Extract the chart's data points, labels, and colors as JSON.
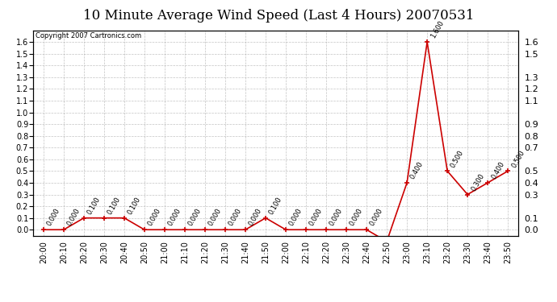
{
  "title": "10 Minute Average Wind Speed (Last 4 Hours) 20070531",
  "copyright": "Copyright 2007 Cartronics.com",
  "x_labels": [
    "20:00",
    "20:10",
    "20:20",
    "20:30",
    "20:40",
    "20:50",
    "21:00",
    "21:10",
    "21:20",
    "21:30",
    "21:40",
    "21:50",
    "22:00",
    "22:10",
    "22:20",
    "22:30",
    "22:40",
    "22:50",
    "23:00",
    "23:10",
    "23:20",
    "23:30",
    "23:40",
    "23:50"
  ],
  "y_values": [
    0.0,
    0.0,
    0.1,
    0.1,
    0.1,
    0.0,
    0.0,
    0.0,
    0.0,
    0.0,
    0.0,
    0.1,
    0.0,
    0.0,
    0.0,
    0.0,
    0.0,
    -0.1,
    0.4,
    1.6,
    0.5,
    0.3,
    0.4,
    0.5
  ],
  "line_color": "#cc0000",
  "marker_color": "#cc0000",
  "background_color": "#ffffff",
  "plot_bg_color": "#ffffff",
  "grid_color": "#aaaaaa",
  "ylim": [
    -0.05,
    1.7
  ],
  "yticks_left": [
    0.0,
    0.1,
    0.2,
    0.3,
    0.4,
    0.5,
    0.6,
    0.7,
    0.8,
    0.9,
    1.0,
    1.1,
    1.2,
    1.3,
    1.4,
    1.5,
    1.6
  ],
  "yticks_right": [
    0.0,
    0.1,
    0.3,
    0.4,
    0.5,
    0.7,
    0.8,
    0.9,
    1.1,
    1.2,
    1.3,
    1.5,
    1.6
  ],
  "title_fontsize": 12,
  "label_fontsize": 7,
  "annot_fontsize": 6,
  "tick_fontsize": 8
}
